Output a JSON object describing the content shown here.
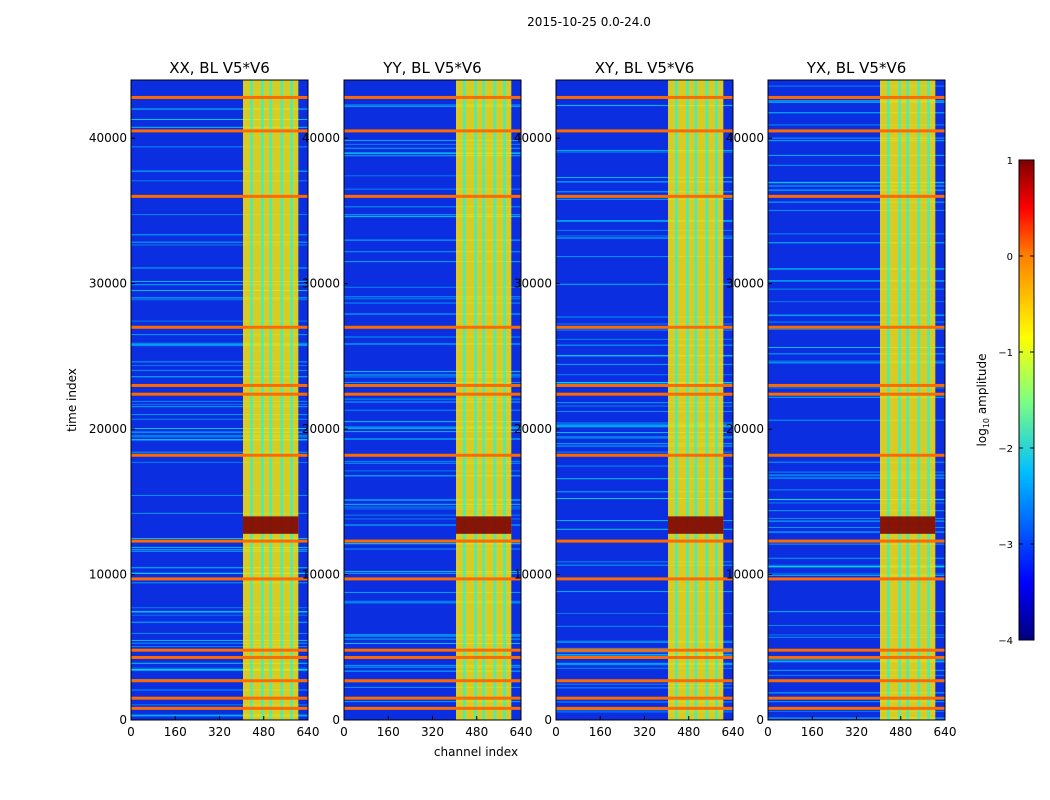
{
  "chart_data": {
    "type": "heatmap",
    "suptitle": "2015-10-25 0.0-24.0",
    "xlabel": "channel index",
    "ylabel": "time index",
    "xlim": [
      0,
      640
    ],
    "ylim": [
      0,
      44000
    ],
    "xticks": [
      0,
      160,
      320,
      480,
      640
    ],
    "yticks": [
      0,
      10000,
      20000,
      30000,
      40000
    ],
    "xtick_labels": [
      "0",
      "160",
      "320",
      "480",
      "640"
    ],
    "ytick_labels": [
      "0",
      "10000",
      "20000",
      "30000",
      "40000"
    ],
    "colorbar": {
      "label_prefix": "log",
      "label_sub": "10",
      "label_suffix": " amplitude",
      "range": [
        -4,
        1
      ],
      "ticks": [
        1,
        0,
        -1,
        -2,
        -3,
        -4
      ],
      "tick_labels": [
        "1",
        "0",
        "−1",
        "−2",
        "−3",
        "−4"
      ]
    },
    "panels": [
      {
        "title": "XX, BL V5*V6"
      },
      {
        "title": "YY, BL V5*V6"
      },
      {
        "title": "XY, BL V5*V6"
      },
      {
        "title": "YX, BL V5*V6"
      }
    ],
    "rfi_channel_band": [
      405,
      605
    ],
    "rfi_time_rows": [
      800,
      1500,
      2700,
      4300,
      4800,
      9700,
      12300,
      18200,
      22400,
      23000,
      27000,
      36000,
      40500,
      42800
    ]
  },
  "colors": {
    "background": "#0a2ee0",
    "low": "#00007f",
    "mid": "#00ffff",
    "band": "#ffe600",
    "high": "#ff6a00",
    "max": "#7f0000"
  }
}
